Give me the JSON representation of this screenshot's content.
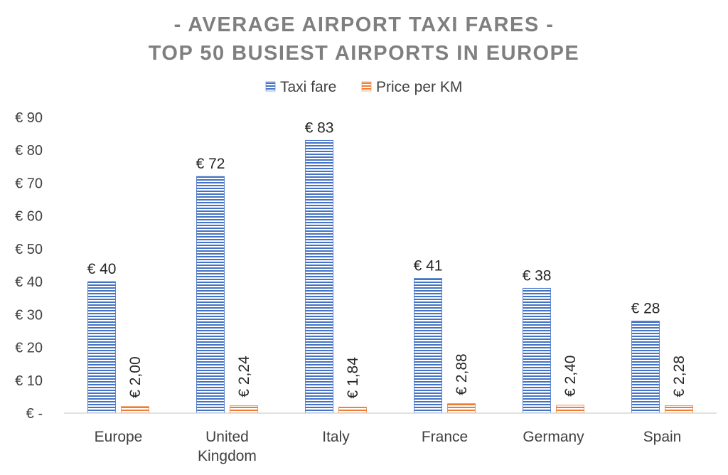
{
  "chart_data": {
    "type": "bar",
    "title_lines": [
      "- AVERAGE AIRPORT TAXI FARES -",
      "TOP 50 BUSIEST AIRPORTS IN EUROPE"
    ],
    "xlabel": "",
    "ylabel": "",
    "ylim": [
      0,
      90
    ],
    "yticks": [
      {
        "value": 0,
        "label": "€ -"
      },
      {
        "value": 10,
        "label": "€ 10"
      },
      {
        "value": 20,
        "label": "€ 20"
      },
      {
        "value": 30,
        "label": "€ 30"
      },
      {
        "value": 40,
        "label": "€ 40"
      },
      {
        "value": 50,
        "label": "€ 50"
      },
      {
        "value": 60,
        "label": "€ 60"
      },
      {
        "value": 70,
        "label": "€ 70"
      },
      {
        "value": 80,
        "label": "€ 80"
      },
      {
        "value": 90,
        "label": "€ 90"
      }
    ],
    "categories": [
      [
        "Europe"
      ],
      [
        "United",
        "Kingdom"
      ],
      [
        "Italy"
      ],
      [
        "France"
      ],
      [
        "Germany"
      ],
      [
        "Spain"
      ]
    ],
    "legend_position": "top-center",
    "grid": false,
    "series": [
      {
        "name": "Taxi fare",
        "color": "#4472c4",
        "values": [
          40,
          72,
          83,
          41,
          38,
          28
        ],
        "labels": [
          "€ 40",
          "€ 72",
          "€ 83",
          "€ 41",
          "€ 38",
          "€ 28"
        ]
      },
      {
        "name": "Price per KM",
        "color": "#ed7d31",
        "values": [
          2.0,
          2.24,
          1.84,
          2.88,
          2.4,
          2.28
        ],
        "labels": [
          "€ 2,00",
          "€ 2,24",
          "€ 1,84",
          "€ 2,88",
          "€ 2,40",
          "€ 2,28"
        ]
      }
    ]
  }
}
